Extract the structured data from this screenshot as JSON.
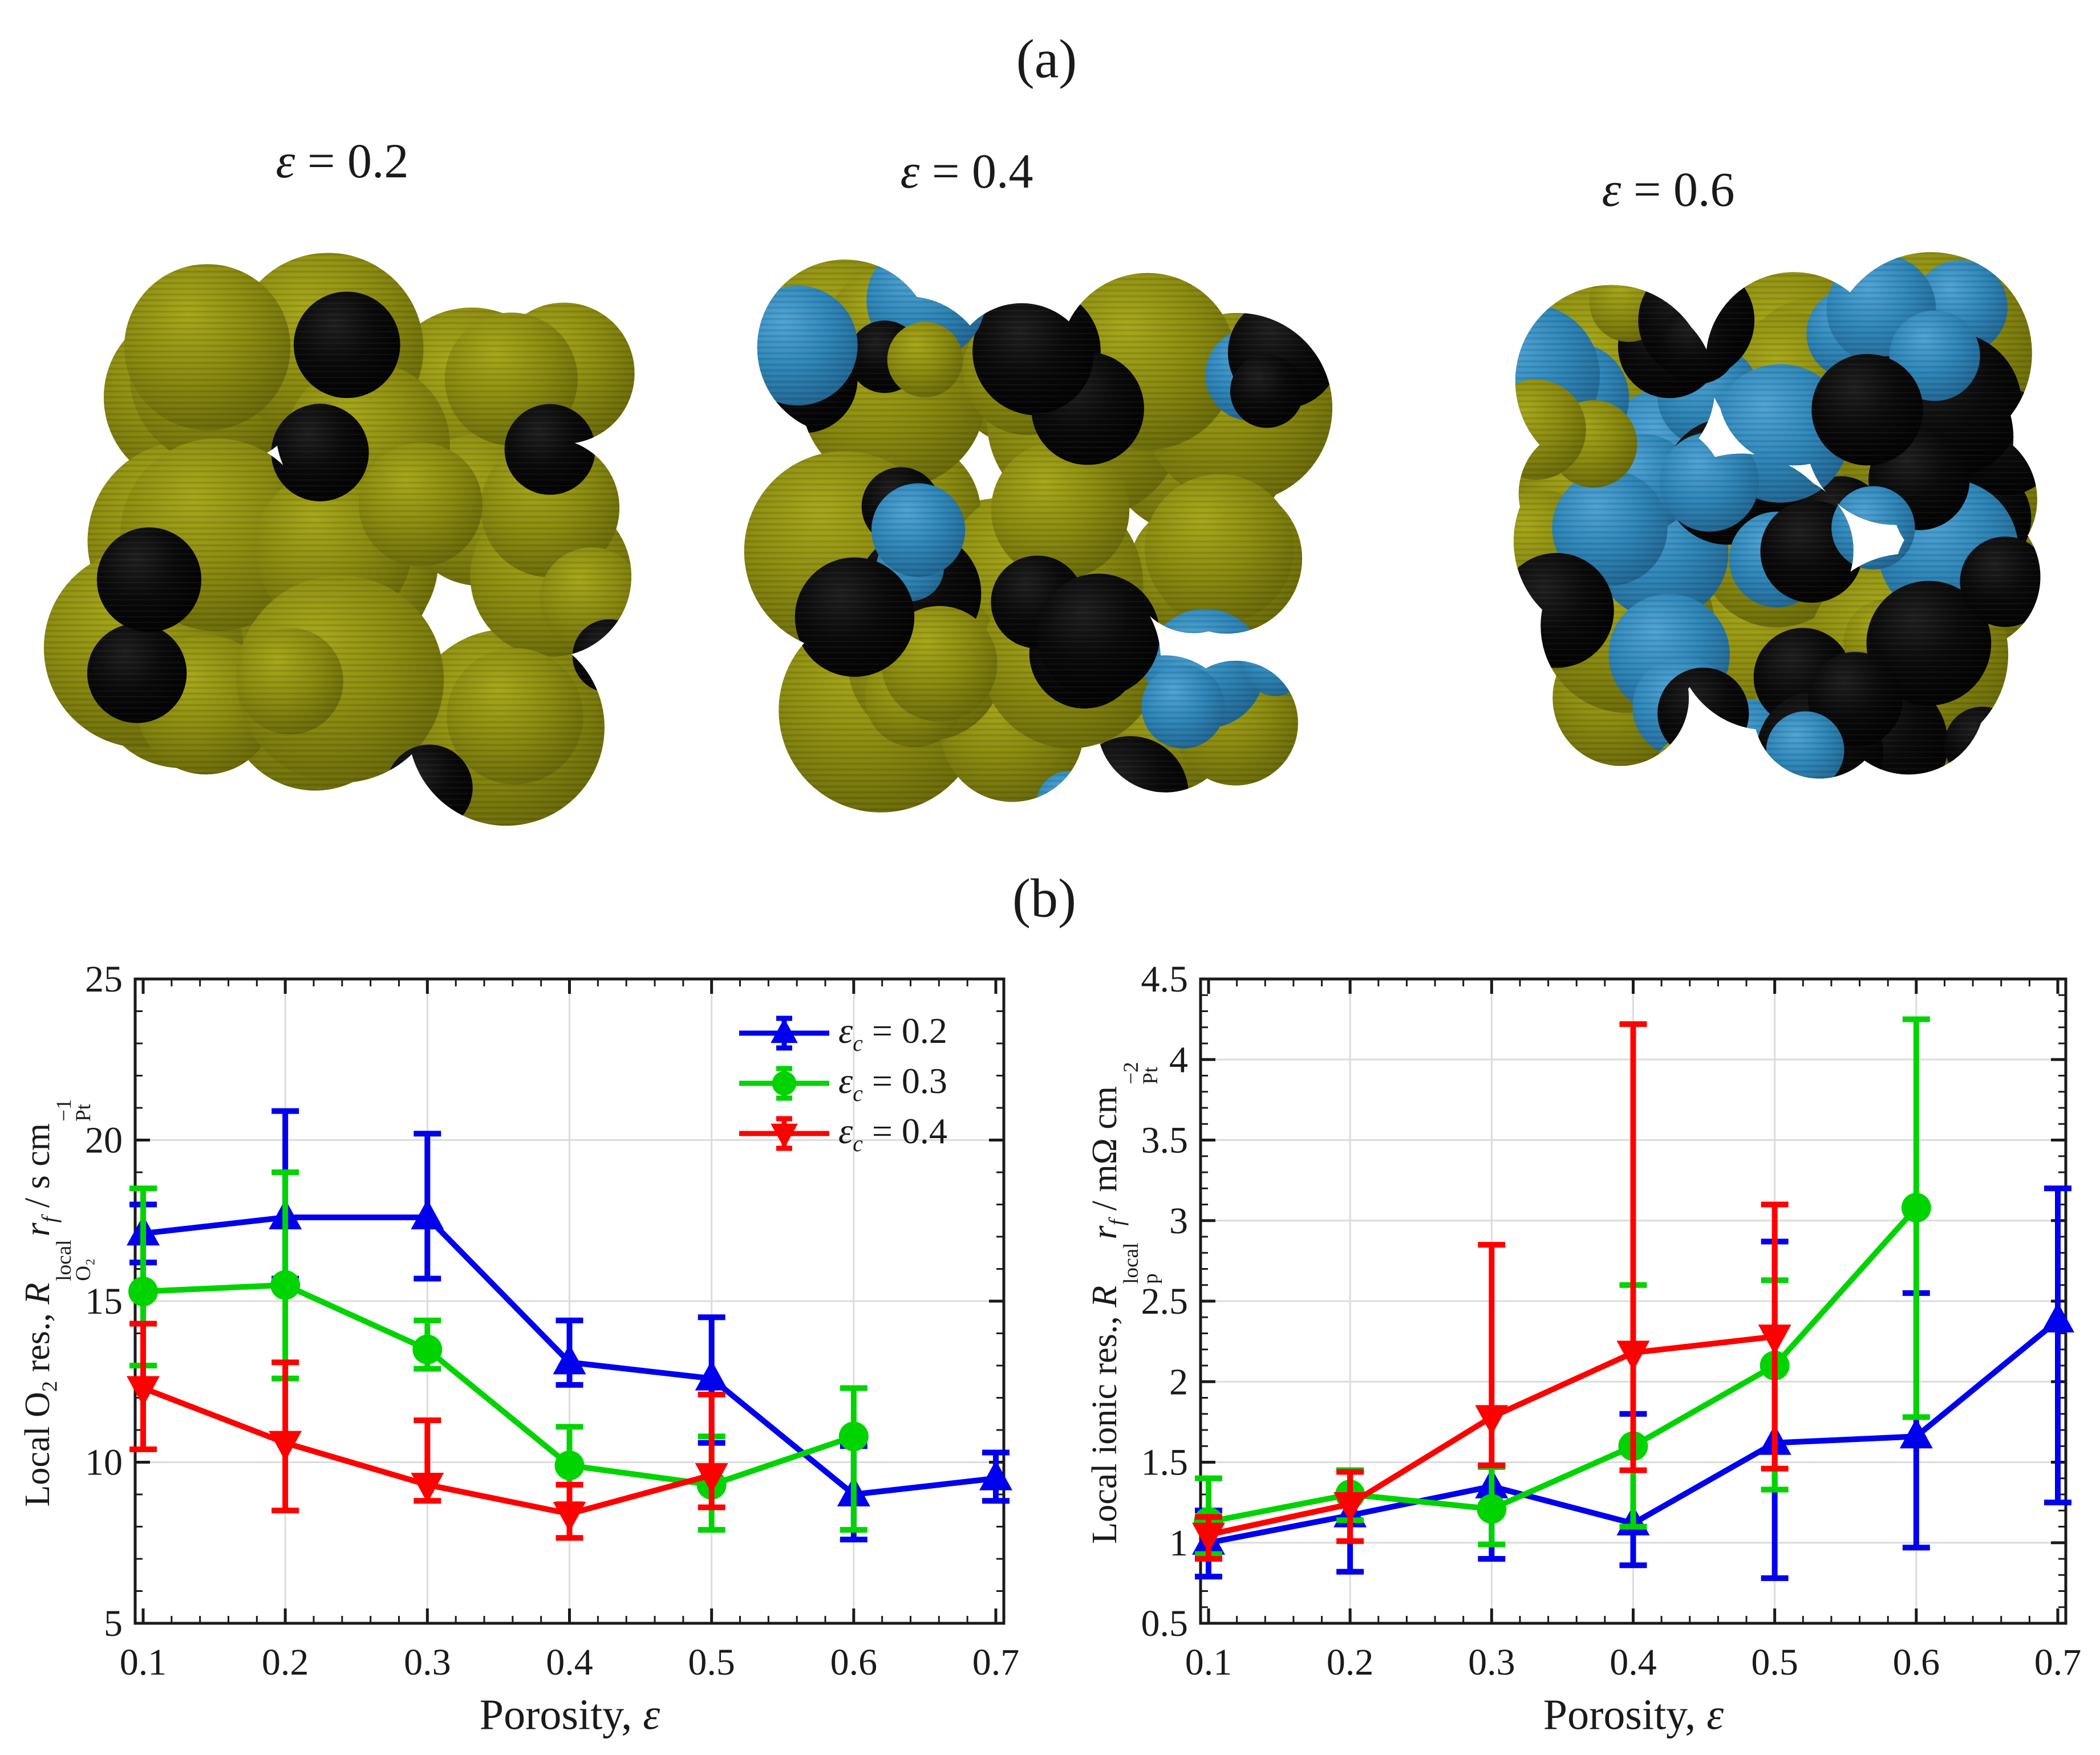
{
  "figure": {
    "panel_a_label": "(a)",
    "panel_b_label": "(b)"
  },
  "panel_a": {
    "items": [
      {
        "title": "ε = 0.2",
        "title_tokens": [
          {
            "t": "i",
            "v": "ε"
          },
          {
            "t": "text",
            "v": " = 0.2"
          }
        ],
        "micro": {
          "seed": 11,
          "n_base": 26,
          "n_over": 10,
          "w_blue": 0.0,
          "w_black": 0.78,
          "r_min": 0.05,
          "r_max": 0.1
        }
      },
      {
        "title": "ε = 0.4",
        "title_tokens": [
          {
            "t": "i",
            "v": "ε"
          },
          {
            "t": "text",
            "v": " = 0.4"
          }
        ],
        "micro": {
          "seed": 23,
          "n_base": 24,
          "n_over": 28,
          "w_blue": 0.46,
          "w_black": 0.34,
          "r_min": 0.05,
          "r_max": 0.105
        }
      },
      {
        "title": "ε = 0.6",
        "title_tokens": [
          {
            "t": "i",
            "v": "ε"
          },
          {
            "t": "text",
            "v": " = 0.6"
          }
        ],
        "micro": {
          "seed": 37,
          "n_base": 22,
          "n_over": 52,
          "w_blue": 0.44,
          "w_black": 0.4,
          "r_min": 0.055,
          "r_max": 0.115
        }
      }
    ],
    "palette": {
      "olive": "#8a8a10",
      "olive_hi": "#a6a61a",
      "olive_lo": "#5e5e07",
      "blue": "#2e86b8",
      "blue_hi": "#4fa3d4",
      "blue_lo": "#1c5a85",
      "black": "#0a0a0a",
      "black_hi": "#1f1f1f"
    }
  },
  "chart_data": [
    {
      "type": "line",
      "title": "",
      "xlabel": "Porosity, ε",
      "xlabel_tokens": [
        {
          "t": "text",
          "v": "Porosity, "
        },
        {
          "t": "i",
          "v": "ε"
        }
      ],
      "ylabel": "Local O₂ res., R_O₂^local r_f / s cm_Pt^−1",
      "ylabel_tokens": [
        {
          "t": "text",
          "v": "Local O"
        },
        {
          "t": "sub",
          "v": "2"
        },
        {
          "t": "text",
          "v": " res., "
        },
        {
          "t": "i",
          "v": "R"
        },
        {
          "t": "stack",
          "top": "local",
          "bottom": "O₂"
        },
        {
          "t": "i",
          "v": "r"
        },
        {
          "t": "isub",
          "v": "f"
        },
        {
          "t": "text",
          "v": " / s cm"
        },
        {
          "t": "stack",
          "top": "−1",
          "bottom": "Pt"
        }
      ],
      "xlim": [
        0.1,
        0.7
      ],
      "ylim": [
        5,
        25
      ],
      "xticks": [
        0.1,
        0.2,
        0.3,
        0.4,
        0.5,
        0.6,
        0.7
      ],
      "xtick_labels": [
        "0.1",
        "0.2",
        "0.3",
        "0.4",
        "0.5",
        "0.6",
        "0.7"
      ],
      "yticks": [
        5,
        10,
        15,
        20,
        25
      ],
      "ytick_labels": [
        "5",
        "10",
        "15",
        "20",
        "25"
      ],
      "x_minor_step": 0.02,
      "y_minor_step": 1,
      "grid": true,
      "legend_position": "upper-right-inside",
      "series": [
        {
          "name": "εc = 0.2",
          "label_tokens": [
            {
              "t": "i",
              "v": "ε"
            },
            {
              "t": "isub",
              "v": "c"
            },
            {
              "t": "text",
              "v": " = 0.2"
            }
          ],
          "color": "#0000ee",
          "marker": "triangle-up",
          "x": [
            0.1,
            0.2,
            0.3,
            0.4,
            0.5,
            0.6,
            0.7
          ],
          "y": [
            17.1,
            17.6,
            17.6,
            13.1,
            12.6,
            9.0,
            9.5
          ],
          "err_lo": [
            16.2,
            15.7,
            15.7,
            12.4,
            10.6,
            7.6,
            8.8
          ],
          "err_hi": [
            18.0,
            20.9,
            20.2,
            14.4,
            14.5,
            10.5,
            10.3
          ]
        },
        {
          "name": "εc = 0.3",
          "label_tokens": [
            {
              "t": "i",
              "v": "ε"
            },
            {
              "t": "isub",
              "v": "c"
            },
            {
              "t": "text",
              "v": " = 0.3"
            }
          ],
          "color": "#00d400",
          "marker": "circle",
          "x": [
            0.1,
            0.2,
            0.3,
            0.4,
            0.5,
            0.6
          ],
          "y": [
            15.3,
            15.5,
            13.5,
            9.9,
            9.3,
            10.8
          ],
          "err_lo": [
            13.0,
            12.6,
            12.9,
            8.7,
            7.9,
            7.9
          ],
          "err_hi": [
            18.5,
            19.0,
            14.4,
            11.1,
            10.8,
            12.3
          ]
        },
        {
          "name": "εc = 0.4",
          "label_tokens": [
            {
              "t": "i",
              "v": "ε"
            },
            {
              "t": "isub",
              "v": "c"
            },
            {
              "t": "text",
              "v": " = 0.4"
            }
          ],
          "color": "#ff0000",
          "marker": "triangle-down",
          "x": [
            0.1,
            0.2,
            0.3,
            0.4,
            0.5
          ],
          "y": [
            12.3,
            10.6,
            9.3,
            8.4,
            9.6
          ],
          "err_lo": [
            10.4,
            8.5,
            8.8,
            7.65,
            8.6
          ],
          "err_hi": [
            14.3,
            13.1,
            11.3,
            9.3,
            12.1
          ]
        }
      ]
    },
    {
      "type": "line",
      "title": "",
      "xlabel": "Porosity, ε",
      "xlabel_tokens": [
        {
          "t": "text",
          "v": "Porosity, "
        },
        {
          "t": "i",
          "v": "ε"
        }
      ],
      "ylabel": "Local ionic res., R_p^local r_f / mΩ cm_Pt^−2",
      "ylabel_tokens": [
        {
          "t": "text",
          "v": "Local ionic res., "
        },
        {
          "t": "i",
          "v": "R"
        },
        {
          "t": "stack",
          "top": "local",
          "bottom": "p"
        },
        {
          "t": "i",
          "v": "r"
        },
        {
          "t": "isub",
          "v": "f"
        },
        {
          "t": "text",
          "v": " / mΩ cm"
        },
        {
          "t": "stack",
          "top": "−2",
          "bottom": "Pt"
        }
      ],
      "xlim": [
        0.1,
        0.7
      ],
      "ylim": [
        0.5,
        4.5
      ],
      "xticks": [
        0.1,
        0.2,
        0.3,
        0.4,
        0.5,
        0.6,
        0.7
      ],
      "xtick_labels": [
        "0.1",
        "0.2",
        "0.3",
        "0.4",
        "0.5",
        "0.6",
        "0.7"
      ],
      "yticks": [
        0.5,
        1,
        1.5,
        2,
        2.5,
        3,
        3.5,
        4,
        4.5
      ],
      "ytick_labels": [
        "0.5",
        "1",
        "1.5",
        "2",
        "2.5",
        "3",
        "3.5",
        "4",
        "4.5"
      ],
      "x_minor_step": 0.02,
      "y_minor_step": 0.1,
      "grid": true,
      "legend_position": "none",
      "series": [
        {
          "name": "εc = 0.2",
          "label_tokens": [
            {
              "t": "i",
              "v": "ε"
            },
            {
              "t": "isub",
              "v": "c"
            },
            {
              "t": "text",
              "v": " = 0.2"
            }
          ],
          "color": "#0000ee",
          "marker": "triangle-up",
          "x": [
            0.1,
            0.2,
            0.3,
            0.4,
            0.5,
            0.6,
            0.7
          ],
          "y": [
            1.0,
            1.17,
            1.35,
            1.12,
            1.62,
            1.66,
            2.38
          ],
          "err_lo": [
            0.79,
            0.82,
            0.9,
            0.86,
            0.78,
            0.97,
            1.25
          ],
          "err_hi": [
            1.2,
            1.45,
            1.48,
            1.8,
            2.87,
            2.55,
            3.2
          ]
        },
        {
          "name": "εc = 0.3",
          "label_tokens": [
            {
              "t": "i",
              "v": "ε"
            },
            {
              "t": "isub",
              "v": "c"
            },
            {
              "t": "text",
              "v": " = 0.3"
            }
          ],
          "color": "#00d400",
          "marker": "circle",
          "x": [
            0.1,
            0.2,
            0.3,
            0.4,
            0.5,
            0.6
          ],
          "y": [
            1.13,
            1.3,
            1.21,
            1.6,
            2.1,
            3.08
          ],
          "err_lo": [
            0.93,
            1.14,
            0.99,
            1.1,
            1.33,
            1.78
          ],
          "err_hi": [
            1.4,
            1.45,
            1.47,
            2.6,
            2.63,
            4.25
          ]
        },
        {
          "name": "εc = 0.4",
          "label_tokens": [
            {
              "t": "i",
              "v": "ε"
            },
            {
              "t": "isub",
              "v": "c"
            },
            {
              "t": "text",
              "v": " = 0.4"
            }
          ],
          "color": "#ff0000",
          "marker": "triangle-down",
          "x": [
            0.1,
            0.2,
            0.3,
            0.4,
            0.5
          ],
          "y": [
            1.05,
            1.24,
            1.78,
            2.18,
            2.28
          ],
          "err_lo": [
            0.9,
            1.01,
            1.48,
            1.45,
            1.46
          ],
          "err_hi": [
            1.16,
            1.44,
            2.85,
            4.22,
            3.1
          ]
        }
      ]
    }
  ]
}
